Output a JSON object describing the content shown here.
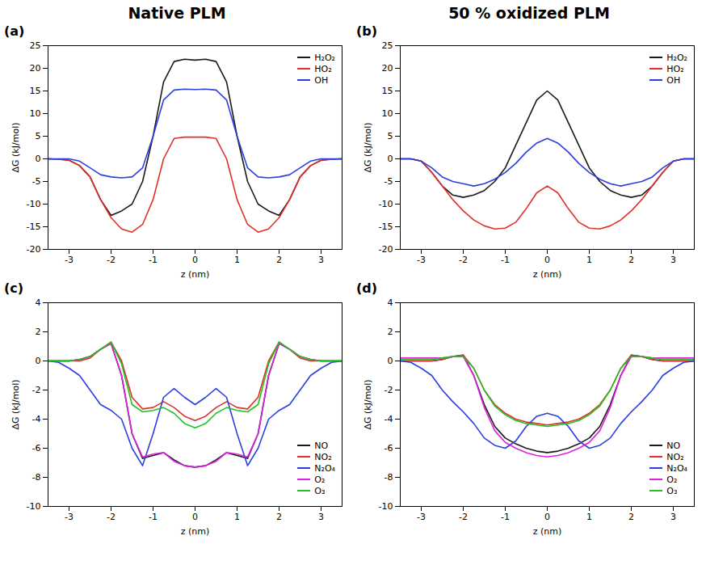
{
  "column_titles": [
    "Native PLM",
    "50 % oxidized PLM"
  ],
  "chart_data": [
    {
      "type": "line",
      "title": "(a)",
      "xlabel": "z (nm)",
      "ylabel": "ΔG (kJ/mol)",
      "xlim": [
        -3.5,
        3.5
      ],
      "xticks": [
        -3,
        -2,
        -1,
        0,
        1,
        2,
        3
      ],
      "ylim": [
        -20,
        25
      ],
      "yticks": [
        -20,
        -15,
        -10,
        -5,
        0,
        5,
        10,
        15,
        20,
        25
      ],
      "grid": false,
      "legend": "upper right",
      "x": [
        -3.5,
        -3.25,
        -3,
        -2.75,
        -2.5,
        -2.25,
        -2,
        -1.75,
        -1.5,
        -1.25,
        -1,
        -0.75,
        -0.5,
        -0.25,
        0,
        0.25,
        0.5,
        0.75,
        1,
        1.25,
        1.5,
        1.75,
        2,
        2.25,
        2.5,
        2.75,
        3,
        3.25,
        3.5
      ],
      "series": [
        {
          "name": "H₂O₂",
          "color": "#1a1a1a",
          "values": [
            0,
            -0.1,
            -0.3,
            -1.5,
            -4,
            -9,
            -12.5,
            -11.5,
            -10,
            -5,
            5,
            17,
            21.5,
            22,
            21.8,
            22,
            21.5,
            17,
            5,
            -5,
            -10,
            -11.5,
            -12.5,
            -9,
            -4,
            -1.5,
            -0.3,
            -0.1,
            0
          ]
        },
        {
          "name": "HO₂",
          "color": "#e0302a",
          "values": [
            0,
            -0.1,
            -0.3,
            -1.5,
            -4,
            -9,
            -13,
            -15.5,
            -16.2,
            -14.5,
            -9,
            0,
            4.5,
            4.8,
            4.8,
            4.8,
            4.5,
            0,
            -9,
            -14.5,
            -16.2,
            -15.5,
            -13,
            -9,
            -4,
            -1.5,
            -0.3,
            -0.1,
            0
          ]
        },
        {
          "name": "OH",
          "color": "#2b3fe0",
          "values": [
            0,
            0,
            0,
            -0.5,
            -2,
            -3.5,
            -4,
            -4.2,
            -4,
            -2,
            5,
            13,
            15.2,
            15.4,
            15.3,
            15.4,
            15.2,
            13,
            5,
            -2,
            -4,
            -4.2,
            -4,
            -3.5,
            -2,
            -0.5,
            0,
            0,
            0
          ]
        }
      ]
    },
    {
      "type": "line",
      "title": "(b)",
      "xlabel": "z (nm)",
      "ylabel": "ΔG (kJ/mol)",
      "xlim": [
        -3.5,
        3.5
      ],
      "xticks": [
        -3,
        -2,
        -1,
        0,
        1,
        2,
        3
      ],
      "ylim": [
        -20,
        25
      ],
      "yticks": [
        -20,
        -15,
        -10,
        -5,
        0,
        5,
        10,
        15,
        20,
        25
      ],
      "grid": false,
      "legend": "upper right",
      "x": [
        -3.5,
        -3.25,
        -3,
        -2.75,
        -2.5,
        -2.25,
        -2,
        -1.75,
        -1.5,
        -1.25,
        -1,
        -0.75,
        -0.5,
        -0.25,
        0,
        0.25,
        0.5,
        0.75,
        1,
        1.25,
        1.5,
        1.75,
        2,
        2.25,
        2.5,
        2.75,
        3,
        3.25,
        3.5
      ],
      "series": [
        {
          "name": "H₂O₂",
          "color": "#1a1a1a",
          "values": [
            0,
            0,
            -0.5,
            -3,
            -6,
            -8,
            -8.5,
            -8,
            -7,
            -5,
            -2,
            3,
            8,
            13,
            15,
            13,
            8,
            3,
            -2,
            -5,
            -7,
            -8,
            -8.5,
            -8,
            -6,
            -3,
            -0.5,
            0,
            0
          ]
        },
        {
          "name": "HO₂",
          "color": "#e0302a",
          "values": [
            0,
            0,
            -0.5,
            -3,
            -6,
            -9,
            -11.5,
            -13.5,
            -14.8,
            -15.5,
            -15.3,
            -14,
            -11,
            -7.5,
            -6,
            -7.5,
            -11,
            -14,
            -15.3,
            -15.5,
            -14.8,
            -13.5,
            -11.5,
            -9,
            -6,
            -3,
            -0.5,
            0,
            0
          ]
        },
        {
          "name": "OH",
          "color": "#2b3fe0",
          "values": [
            0,
            0,
            -0.5,
            -2,
            -4,
            -5,
            -5.5,
            -6,
            -5.5,
            -4.5,
            -3,
            -1,
            1.5,
            3.5,
            4.5,
            3.5,
            1.5,
            -1,
            -3,
            -4.5,
            -5.5,
            -6,
            -5.5,
            -5,
            -4,
            -2,
            -0.5,
            0,
            0
          ]
        }
      ]
    },
    {
      "type": "line",
      "title": "(c)",
      "xlabel": "z (nm)",
      "ylabel": "ΔG (kJ/mol)",
      "xlim": [
        -3.5,
        3.5
      ],
      "xticks": [
        -3,
        -2,
        -1,
        0,
        1,
        2,
        3
      ],
      "ylim": [
        -10,
        4
      ],
      "yticks": [
        -10,
        -8,
        -6,
        -4,
        -2,
        0,
        2,
        4
      ],
      "grid": false,
      "legend": "lower right",
      "x": [
        -3.5,
        -3.25,
        -3,
        -2.75,
        -2.5,
        -2.25,
        -2,
        -1.75,
        -1.5,
        -1.25,
        -1,
        -0.75,
        -0.5,
        -0.25,
        0,
        0.25,
        0.5,
        0.75,
        1,
        1.25,
        1.5,
        1.75,
        2,
        2.25,
        2.5,
        2.75,
        3,
        3.25,
        3.5
      ],
      "series": [
        {
          "name": "NO",
          "color": "#1a1a1a",
          "values": [
            0,
            0,
            0,
            0.1,
            0.3,
            0.8,
            1.2,
            -1,
            -5,
            -6.7,
            -6.5,
            -6.3,
            -6.8,
            -7.2,
            -7.3,
            -7.2,
            -6.8,
            -6.3,
            -6.5,
            -6.7,
            -5,
            -1,
            1.2,
            0.8,
            0.3,
            0.1,
            0,
            0,
            0
          ]
        },
        {
          "name": "NO₂",
          "color": "#e0302a",
          "values": [
            0,
            0,
            0,
            0,
            0.2,
            0.8,
            1.3,
            0,
            -2.5,
            -3.3,
            -3.2,
            -2.8,
            -3.2,
            -3.8,
            -4.1,
            -3.8,
            -3.2,
            -2.8,
            -3.2,
            -3.3,
            -2.5,
            0,
            1.3,
            0.8,
            0.2,
            0,
            0,
            0,
            0
          ]
        },
        {
          "name": "N₂O₄",
          "color": "#2b3fe0",
          "values": [
            0,
            -0.1,
            -0.5,
            -1,
            -2,
            -3,
            -3.4,
            -4,
            -6,
            -7.2,
            -5,
            -2.5,
            -1.9,
            -2.5,
            -3,
            -2.5,
            -1.9,
            -2.5,
            -5,
            -7.2,
            -6,
            -4,
            -3.4,
            -3,
            -2,
            -1,
            -0.5,
            -0.1,
            0
          ]
        },
        {
          "name": "O₂",
          "color": "#e020e0",
          "values": [
            0,
            0,
            0,
            0.1,
            0.3,
            0.8,
            1.2,
            -1,
            -5,
            -6.6,
            -6.4,
            -6.3,
            -6.9,
            -7.2,
            -7.3,
            -7.2,
            -6.9,
            -6.3,
            -6.4,
            -6.6,
            -5,
            -1,
            1.2,
            0.8,
            0.3,
            0.1,
            0,
            0,
            0
          ]
        },
        {
          "name": "O₃",
          "color": "#22c022",
          "values": [
            0,
            0,
            0,
            0.1,
            0.3,
            0.8,
            1.3,
            -0.2,
            -3,
            -3.5,
            -3.4,
            -3.2,
            -3.6,
            -4.3,
            -4.6,
            -4.3,
            -3.6,
            -3.2,
            -3.4,
            -3.5,
            -3,
            -0.2,
            1.3,
            0.8,
            0.3,
            0.1,
            0,
            0,
            0
          ]
        }
      ]
    },
    {
      "type": "line",
      "title": "(d)",
      "xlabel": "z (nm)",
      "ylabel": "ΔG (kJ/mol)",
      "xlim": [
        -3.5,
        3.5
      ],
      "xticks": [
        -3,
        -2,
        -1,
        0,
        1,
        2,
        3
      ],
      "ylim": [
        -10,
        4
      ],
      "yticks": [
        -10,
        -8,
        -6,
        -4,
        -2,
        0,
        2,
        4
      ],
      "grid": false,
      "legend": "lower right",
      "x": [
        -3.5,
        -3.25,
        -3,
        -2.75,
        -2.5,
        -2.25,
        -2,
        -1.75,
        -1.5,
        -1.25,
        -1,
        -0.75,
        -0.5,
        -0.25,
        0,
        0.25,
        0.5,
        0.75,
        1,
        1.25,
        1.5,
        1.75,
        2,
        2.25,
        2.5,
        2.75,
        3,
        3.25,
        3.5
      ],
      "series": [
        {
          "name": "NO",
          "color": "#1a1a1a",
          "values": [
            0,
            0,
            0,
            0,
            0.1,
            0.3,
            0.4,
            -1,
            -3,
            -4.5,
            -5.3,
            -5.7,
            -6,
            -6.2,
            -6.3,
            -6.2,
            -6,
            -5.7,
            -5.3,
            -4.5,
            -3,
            -1,
            0.4,
            0.3,
            0.1,
            0,
            0,
            0,
            0
          ]
        },
        {
          "name": "NO₂",
          "color": "#e0302a",
          "values": [
            0,
            0,
            0,
            0,
            0.1,
            0.3,
            0.4,
            -0.5,
            -2,
            -3,
            -3.6,
            -4,
            -4.2,
            -4.3,
            -4.4,
            -4.3,
            -4.2,
            -4,
            -3.6,
            -3,
            -2,
            -0.5,
            0.4,
            0.3,
            0.1,
            0,
            0,
            0,
            0
          ]
        },
        {
          "name": "N₂O₄",
          "color": "#2b3fe0",
          "values": [
            0,
            -0.1,
            -0.5,
            -1,
            -2,
            -2.8,
            -3.5,
            -4.3,
            -5.3,
            -5.8,
            -6,
            -5.5,
            -4.5,
            -3.8,
            -3.6,
            -3.8,
            -4.5,
            -5.5,
            -6,
            -5.8,
            -5.3,
            -4.3,
            -3.5,
            -2.8,
            -2,
            -1,
            -0.5,
            -0.1,
            0
          ]
        },
        {
          "name": "O₂",
          "color": "#e020e0",
          "values": [
            0.2,
            0.2,
            0.2,
            0.2,
            0.2,
            0.3,
            0.3,
            -1,
            -3.2,
            -4.8,
            -5.6,
            -6,
            -6.3,
            -6.5,
            -6.6,
            -6.5,
            -6.3,
            -6,
            -5.6,
            -4.8,
            -3.2,
            -1,
            0.3,
            0.3,
            0.2,
            0.2,
            0.2,
            0.2,
            0.2
          ]
        },
        {
          "name": "O₃",
          "color": "#22c022",
          "values": [
            0.1,
            0.1,
            0.1,
            0.1,
            0.2,
            0.3,
            0.3,
            -0.5,
            -2,
            -3.1,
            -3.7,
            -4.1,
            -4.3,
            -4.4,
            -4.5,
            -4.4,
            -4.3,
            -4.1,
            -3.7,
            -3.1,
            -2,
            -0.5,
            0.3,
            0.3,
            0.2,
            0.1,
            0.1,
            0.1,
            0.1
          ]
        }
      ]
    }
  ]
}
